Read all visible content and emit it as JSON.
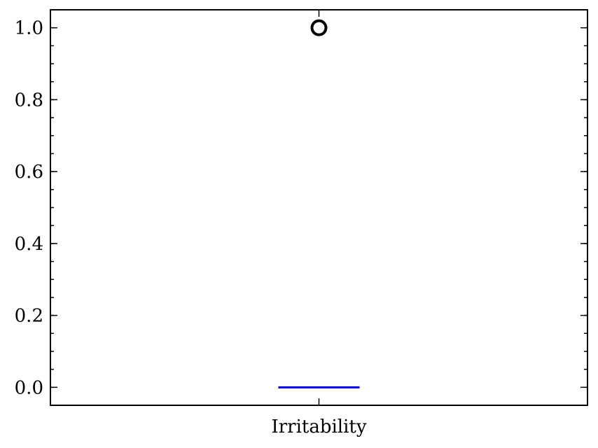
{
  "chart_data": {
    "type": "box",
    "title": "",
    "xlabel": "",
    "ylabel": "",
    "categories": [
      "Irritability"
    ],
    "ylim": [
      -0.05,
      1.05
    ],
    "yticks": [
      0.0,
      0.2,
      0.4,
      0.6,
      0.8,
      1.0
    ],
    "ytick_labels": [
      "0.0",
      "0.2",
      "0.4",
      "0.6",
      "0.8",
      "1.0"
    ],
    "yminor_step": 0.05,
    "boxes": [
      {
        "category": "Irritability",
        "q1": 0.0,
        "median": 0.0,
        "q3": 0.0,
        "whisker_low": 0.0,
        "whisker_high": 0.0,
        "outliers": [
          1.0
        ]
      }
    ],
    "grid": false,
    "tick_direction": "in",
    "median_color": "#0000cc",
    "box_color": "#000000",
    "outlier_marker": "open-circle"
  }
}
